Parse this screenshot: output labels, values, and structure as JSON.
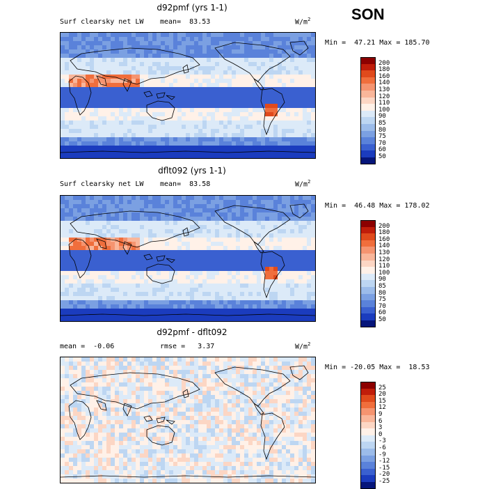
{
  "season": "SON",
  "units_base": "W/m",
  "units_exp": "2",
  "panels": [
    {
      "title": "d92pmf (yrs 1-1)",
      "left_label": "Surf clearsky net LW",
      "stat_label": "mean=  83.53",
      "minmax": "Min =  47.21 Max = 185.70",
      "levels": [
        "200",
        "180",
        "160",
        "140",
        "130",
        "120",
        "110",
        "100",
        "90",
        "85",
        "80",
        "75",
        "70",
        "60",
        "50"
      ],
      "colors": [
        "#8c0000",
        "#c01d0a",
        "#e04a1c",
        "#f06e3c",
        "#f59470",
        "#f9b69a",
        "#fcd6c4",
        "#fff1e8",
        "#dceaf8",
        "#bdd6f2",
        "#9cbcea",
        "#7ba0e2",
        "#5a82da",
        "#3a60d0",
        "#1b3cbe",
        "#06167a"
      ],
      "field": "ctl"
    },
    {
      "title": "dflt092 (yrs 1-1)",
      "left_label": "Surf clearsky net LW",
      "stat_label": "mean=  83.58",
      "minmax": "Min =  46.48 Max = 178.02",
      "levels": [
        "200",
        "180",
        "160",
        "140",
        "130",
        "120",
        "110",
        "100",
        "90",
        "85",
        "80",
        "75",
        "70",
        "60",
        "50"
      ],
      "colors": [
        "#8c0000",
        "#c01d0a",
        "#e04a1c",
        "#f06e3c",
        "#f59470",
        "#f9b69a",
        "#fcd6c4",
        "#fff1e8",
        "#dceaf8",
        "#bdd6f2",
        "#9cbcea",
        "#7ba0e2",
        "#5a82da",
        "#3a60d0",
        "#1b3cbe",
        "#06167a"
      ],
      "field": "ctl"
    },
    {
      "title": "d92pmf - dflt092",
      "left_label": "mean =  -0.06",
      "stat_label": "rmse =   3.37",
      "minmax": "Min = -20.05 Max =  18.53",
      "levels": [
        "25",
        "20",
        "15",
        "12",
        "9",
        "6",
        "3",
        "0",
        "-3",
        "-6",
        "-9",
        "-12",
        "-15",
        "-20",
        "-25"
      ],
      "colors": [
        "#8c0000",
        "#c01d0a",
        "#e04a1c",
        "#f06e3c",
        "#f59470",
        "#f9b69a",
        "#fcd6c4",
        "#fff1e8",
        "#dceaf8",
        "#bdd6f2",
        "#9cbcea",
        "#7ba0e2",
        "#5a82da",
        "#3a60d0",
        "#1b3cbe",
        "#06167a"
      ],
      "field": "diff"
    }
  ]
}
